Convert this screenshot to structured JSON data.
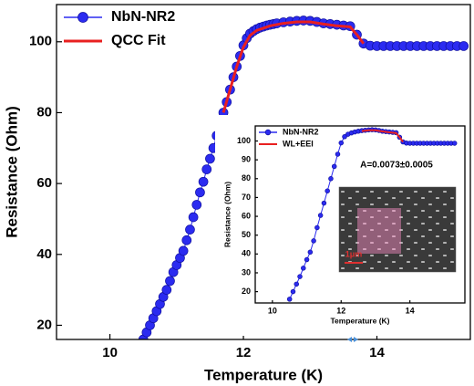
{
  "chart_data": [
    {
      "type": "scatter",
      "x_label": "Temperature (K)",
      "y_label": "Resistance (Ohm)",
      "xlim": [
        9.2,
        15.4
      ],
      "ylim": [
        16,
        110.5
      ],
      "xticks": [
        10,
        12,
        14
      ],
      "yticks": [
        20,
        40,
        60,
        80,
        100
      ],
      "legend": "upper left",
      "series": [
        {
          "name": "NbN-NR2",
          "color": "#2b2bf0",
          "marker": true,
          "x": [
            10.5,
            10.55,
            10.6,
            10.65,
            10.7,
            10.75,
            10.8,
            10.85,
            10.9,
            10.95,
            11.0,
            11.05,
            11.1,
            11.15,
            11.2,
            11.25,
            11.3,
            11.35,
            11.4,
            11.45,
            11.5,
            11.55,
            11.6,
            11.65,
            11.7,
            11.75,
            11.8,
            11.85,
            11.9,
            11.95,
            12.0,
            12.05,
            12.1,
            12.15,
            12.2,
            12.25,
            12.3,
            12.35,
            12.4,
            12.45,
            12.5,
            12.6,
            12.7,
            12.8,
            12.9,
            13.0,
            13.1,
            13.2,
            13.3,
            13.4,
            13.5,
            13.6,
            13.7,
            13.8,
            13.9,
            14.0,
            14.1,
            14.2,
            14.3,
            14.4,
            14.5,
            14.6,
            14.7,
            14.8,
            14.9,
            15.0,
            15.1,
            15.2,
            15.3
          ],
          "values": [
            16,
            18,
            20,
            22,
            24,
            26,
            28,
            30,
            32.5,
            35,
            37,
            39,
            41,
            44,
            47,
            50.5,
            54,
            57.5,
            60.5,
            64,
            67,
            70,
            73.5,
            77,
            80,
            83,
            86.5,
            90,
            93,
            96,
            99,
            101,
            102.3,
            103,
            103.6,
            104,
            104.3,
            104.6,
            104.8,
            105,
            105.2,
            105.5,
            105.7,
            105.9,
            106,
            105.9,
            105.6,
            105.2,
            105,
            104.8,
            104.6,
            104.4,
            102,
            99.5,
            98.9,
            98.8,
            98.8,
            98.8,
            98.8,
            98.8,
            98.8,
            98.8,
            98.8,
            98.8,
            98.8,
            98.8,
            98.8,
            98.8,
            98.8
          ]
        },
        {
          "name": "QCC Fit",
          "color": "#e82020",
          "x": [
            11.7,
            11.8,
            11.9,
            12.0,
            12.1,
            12.2,
            12.4,
            12.6,
            12.8,
            13.0,
            13.2,
            13.4,
            13.6,
            13.7,
            13.8
          ],
          "values": [
            80,
            86.5,
            93,
            98.5,
            101.8,
            103.2,
            104.5,
            105.2,
            105.6,
            105.6,
            105,
            104.5,
            104.2,
            102,
            99.5
          ]
        }
      ]
    },
    {
      "type": "scatter",
      "x_label": "Temperature (K)",
      "y_label": "Resistance (Ohm)",
      "xlim": [
        9.5,
        15.6
      ],
      "ylim": [
        14,
        108
      ],
      "xticks": [
        10,
        12,
        14
      ],
      "yticks": [
        20,
        30,
        40,
        50,
        60,
        70,
        80,
        90,
        100
      ],
      "legend": "upper left",
      "annotation": "A=0.0073±0.0005",
      "image_label": "1μm",
      "series": [
        {
          "name": "NbN-NR2",
          "color": "#2b2bf0",
          "marker": true,
          "x": [
            10.5,
            10.6,
            10.7,
            10.8,
            10.9,
            11.0,
            11.1,
            11.2,
            11.3,
            11.4,
            11.5,
            11.6,
            11.7,
            11.8,
            11.9,
            12.0,
            12.1,
            12.2,
            12.3,
            12.4,
            12.5,
            12.6,
            12.7,
            12.8,
            12.9,
            13.0,
            13.1,
            13.2,
            13.3,
            13.4,
            13.5,
            13.6,
            13.7,
            13.8,
            13.9,
            14.0,
            14.1,
            14.2,
            14.3,
            14.4,
            14.5,
            14.6,
            14.7,
            14.8,
            14.9,
            15.0,
            15.1,
            15.2,
            15.3
          ],
          "values": [
            16,
            20,
            24,
            28,
            32.5,
            37,
            41,
            47,
            54,
            60.5,
            67,
            73.5,
            80,
            86.5,
            93,
            99,
            102.3,
            103.6,
            104.3,
            104.8,
            105.2,
            105.5,
            105.7,
            105.9,
            106,
            105.9,
            105.6,
            105.2,
            105,
            104.8,
            104.6,
            104.4,
            102,
            99.5,
            98.9,
            98.8,
            98.8,
            98.8,
            98.8,
            98.8,
            98.8,
            98.8,
            98.8,
            98.8,
            98.8,
            98.8,
            98.8,
            98.8,
            98.8
          ]
        },
        {
          "name": "WL+EEI",
          "color": "#e82020",
          "x": [
            12.6,
            12.8,
            13.0,
            13.2,
            13.4,
            13.6,
            13.7,
            13.8
          ],
          "values": [
            105.3,
            105.7,
            105.7,
            105.1,
            104.6,
            104.2,
            102,
            99.5
          ]
        }
      ]
    }
  ]
}
